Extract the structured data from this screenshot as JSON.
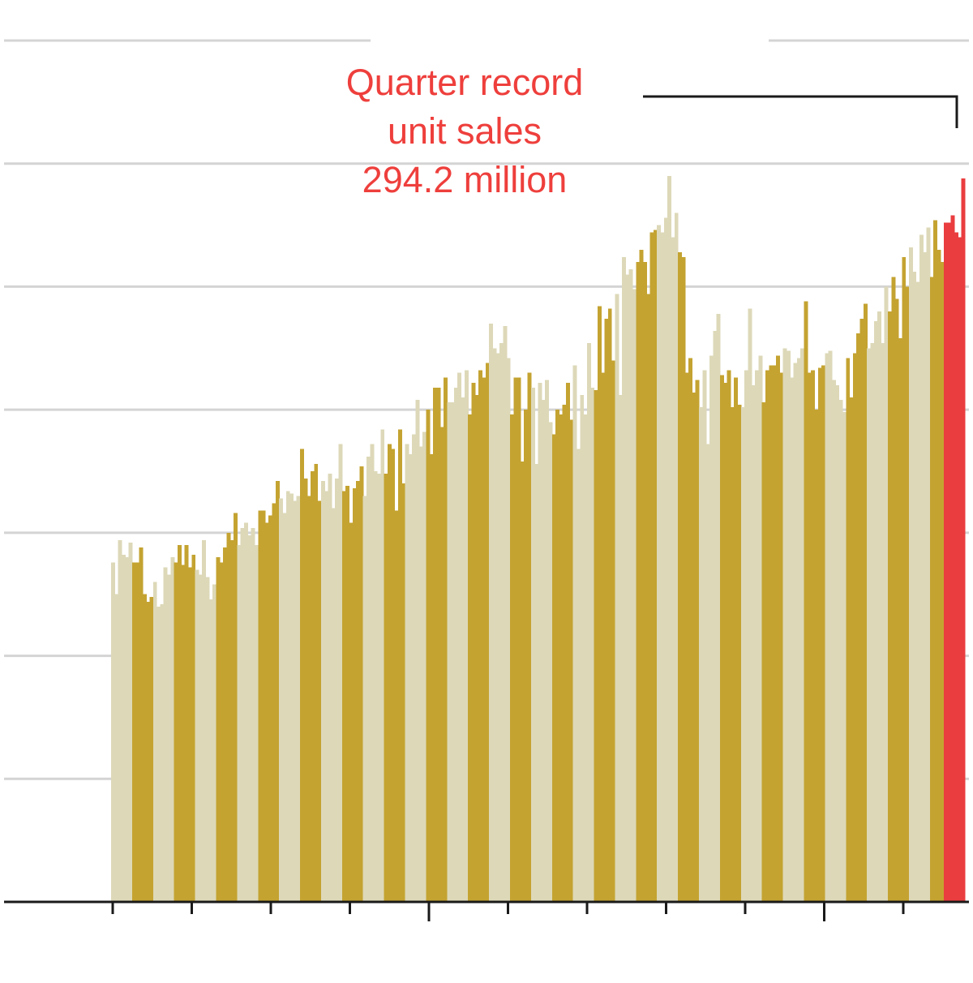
{
  "colors": {
    "light_bar": "#ddd8b8",
    "dark_bar": "#c4a331",
    "highlight_bar": "#ea3d3f",
    "grid": "#d4d4d4",
    "axis": "#1a1a1a",
    "annotation_text": "#ee3f3c"
  },
  "annotation": {
    "line1": "Quarter record",
    "line2": "unit sales",
    "line3": "294.2 million"
  },
  "chart_data": {
    "type": "bar",
    "title": "",
    "xlabel": "",
    "ylabel": "",
    "ylim": [
      0,
      350
    ],
    "gridlines": [
      0,
      50,
      100,
      150,
      200,
      250,
      300,
      350
    ],
    "grid": true,
    "x_ticks": 11,
    "series": [
      {
        "values": [
          138,
          125,
          147,
          141,
          140,
          146,
          138,
          138,
          144,
          125,
          122,
          124,
          130,
          120,
          121,
          136,
          133,
          140,
          138,
          145,
          137,
          145,
          136,
          141,
          135,
          133,
          147,
          132,
          123,
          129,
          140,
          138,
          144,
          150,
          147,
          158,
          145,
          152,
          154,
          149,
          152,
          145,
          159,
          159,
          154,
          157,
          162,
          171,
          164,
          158,
          167,
          166,
          163,
          165,
          184,
          172,
          165,
          175,
          178,
          163,
          171,
          167,
          174,
          160,
          172,
          186,
          167,
          169,
          154,
          168,
          171,
          177,
          165,
          181,
          186,
          175,
          174,
          192,
          174,
          186,
          184,
          159,
          192,
          170,
          186,
          182,
          190,
          204,
          185,
          191,
          200,
          182,
          209,
          209,
          193,
          213,
          203,
          203,
          209,
          215,
          205,
          216,
          198,
          211,
          206,
          216,
          213,
          219,
          235,
          225,
          223,
          227,
          234,
          221,
          198,
          213,
          213,
          179,
          200,
          215,
          209,
          178,
          211,
          204,
          212,
          195,
          190,
          200,
          198,
          202,
          211,
          196,
          218,
          184,
          206,
          198,
          227,
          209,
          208,
          242,
          215,
          237,
          241,
          220,
          247,
          206,
          262,
          255,
          257,
          249,
          260,
          265,
          260,
          247,
          272,
          273,
          275,
          272,
          278,
          295,
          270,
          280,
          264,
          262,
          215,
          221,
          207,
          212,
          201,
          216,
          186,
          222,
          232,
          239,
          214,
          211,
          216,
          201,
          213,
          202,
          201,
          216,
          241,
          210,
          216,
          222,
          203,
          216,
          218,
          218,
          222,
          215,
          225,
          224,
          213,
          219,
          221,
          225,
          244,
          215,
          216,
          200,
          217,
          218,
          223,
          224,
          212,
          210,
          204,
          199,
          221,
          205,
          223,
          231,
          237,
          243,
          225,
          227,
          236,
          240,
          227,
          250,
          240,
          254,
          245,
          229,
          262,
          250,
          266,
          256,
          252,
          271,
          264,
          274,
          254,
          277,
          265,
          260,
          276,
          276,
          279,
          272,
          270,
          294
        ]
      }
    ]
  }
}
